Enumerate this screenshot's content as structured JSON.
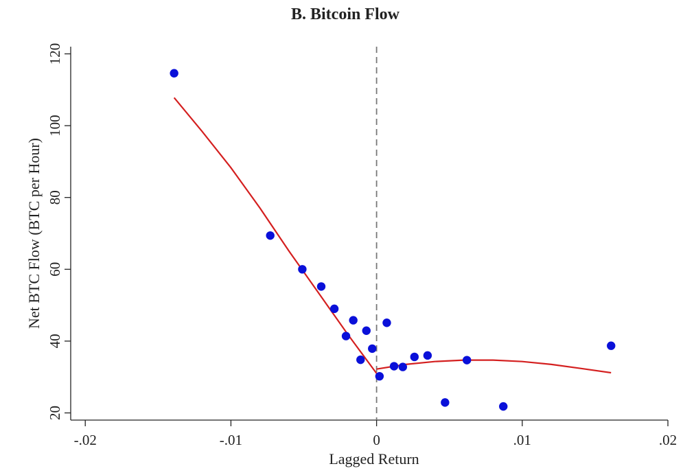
{
  "chart_data": {
    "type": "scatter",
    "title": "B. Bitcoin Flow",
    "xlabel": "Lagged Return",
    "ylabel": "Net BTC Flow (BTC per Hour)",
    "xlim": [
      -0.021,
      0.02
    ],
    "ylim": [
      18,
      122
    ],
    "x_ticks": [
      {
        "value": -0.02,
        "label": "-.02"
      },
      {
        "value": -0.01,
        "label": "-.01"
      },
      {
        "value": 0,
        "label": "0"
      },
      {
        "value": 0.01,
        "label": ".01"
      },
      {
        "value": 0.02,
        "label": ".02"
      }
    ],
    "y_ticks": [
      {
        "value": 20,
        "label": "20"
      },
      {
        "value": 40,
        "label": "40"
      },
      {
        "value": 60,
        "label": "60"
      },
      {
        "value": 80,
        "label": "80"
      },
      {
        "value": 100,
        "label": "100"
      },
      {
        "value": 120,
        "label": "120"
      }
    ],
    "reference_line": {
      "x": 0,
      "style": "dashed"
    },
    "colors": {
      "points": "#0a10d9",
      "fit": "#d41f1f",
      "axis": "#222222",
      "reference": "#777777"
    },
    "series": [
      {
        "name": "binned observations",
        "kind": "scatter",
        "points": [
          {
            "x": -0.0139,
            "y": 114.6
          },
          {
            "x": -0.0073,
            "y": 69.4
          },
          {
            "x": -0.0051,
            "y": 60.0
          },
          {
            "x": -0.0038,
            "y": 55.2
          },
          {
            "x": -0.0029,
            "y": 49.0
          },
          {
            "x": -0.0021,
            "y": 41.4
          },
          {
            "x": -0.0016,
            "y": 45.8
          },
          {
            "x": -0.0011,
            "y": 34.8
          },
          {
            "x": -0.0007,
            "y": 42.9
          },
          {
            "x": -0.0003,
            "y": 37.9
          },
          {
            "x": 0.0002,
            "y": 30.2
          },
          {
            "x": 0.0007,
            "y": 45.1
          },
          {
            "x": 0.0012,
            "y": 33.0
          },
          {
            "x": 0.0018,
            "y": 32.8
          },
          {
            "x": 0.0026,
            "y": 35.6
          },
          {
            "x": 0.0035,
            "y": 36.0
          },
          {
            "x": 0.0047,
            "y": 22.9
          },
          {
            "x": 0.0062,
            "y": 34.7
          },
          {
            "x": 0.0087,
            "y": 21.8
          },
          {
            "x": 0.0161,
            "y": 38.7
          }
        ]
      },
      {
        "name": "fitted curve (left of zero)",
        "kind": "line",
        "points": [
          {
            "x": -0.0139,
            "y": 107.8
          },
          {
            "x": -0.012,
            "y": 98.5
          },
          {
            "x": -0.01,
            "y": 88.3
          },
          {
            "x": -0.008,
            "y": 77.0
          },
          {
            "x": -0.006,
            "y": 65.0
          },
          {
            "x": -0.004,
            "y": 53.5
          },
          {
            "x": -0.002,
            "y": 42.0
          },
          {
            "x": 0.0,
            "y": 31.0
          }
        ]
      },
      {
        "name": "fitted curve (right of zero)",
        "kind": "line",
        "points": [
          {
            "x": 0.0,
            "y": 32.2
          },
          {
            "x": 0.002,
            "y": 33.5
          },
          {
            "x": 0.004,
            "y": 34.3
          },
          {
            "x": 0.006,
            "y": 34.7
          },
          {
            "x": 0.008,
            "y": 34.7
          },
          {
            "x": 0.01,
            "y": 34.3
          },
          {
            "x": 0.012,
            "y": 33.5
          },
          {
            "x": 0.014,
            "y": 32.4
          },
          {
            "x": 0.0161,
            "y": 31.2
          }
        ]
      }
    ]
  }
}
